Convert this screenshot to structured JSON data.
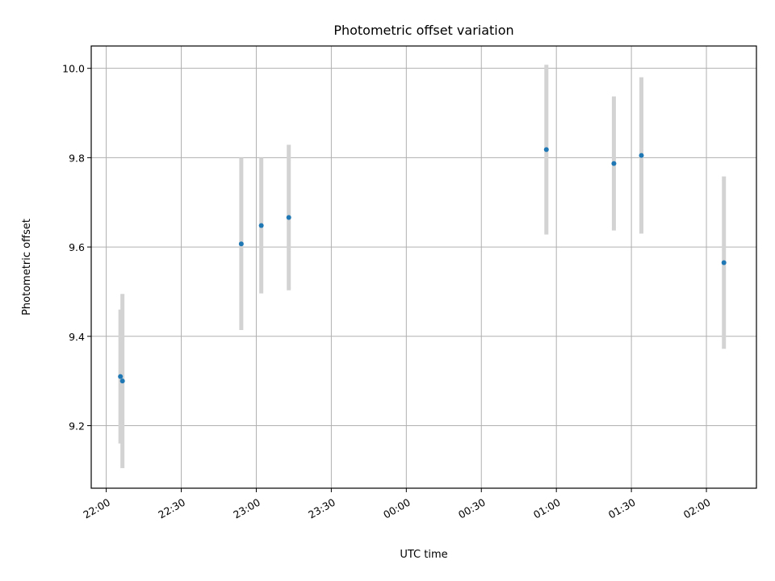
{
  "chart_data": {
    "type": "scatter",
    "title": "Photometric offset variation",
    "xlabel": "UTC time",
    "ylabel": "Photometric offset",
    "xlim": [
      "21:54",
      "02:20"
    ],
    "ylim": [
      9.06,
      10.05
    ],
    "x_ticks": [
      "22:00",
      "22:30",
      "23:00",
      "23:30",
      "00:00",
      "00:30",
      "01:00",
      "01:30",
      "02:00"
    ],
    "y_ticks": [
      9.2,
      9.4,
      9.6,
      9.8,
      10.0
    ],
    "y_tick_labels": [
      "9.2",
      "9.4",
      "9.6",
      "9.8",
      "10.0"
    ],
    "grid": true,
    "point_color": "#1f77b4",
    "errorbar_color": "#d3d3d3",
    "points": [
      {
        "x": "22:06",
        "y": 9.31,
        "yerr": 0.15
      },
      {
        "x": "22:06",
        "y": 9.3,
        "yerr": 0.195
      },
      {
        "x": "22:54",
        "y": 9.607,
        "yerr": 0.193
      },
      {
        "x": "23:02",
        "y": 9.648,
        "yerr": 0.152
      },
      {
        "x": "23:13",
        "y": 9.666,
        "yerr": 0.163
      },
      {
        "x": "00:56",
        "y": 9.818,
        "yerr": 0.19
      },
      {
        "x": "01:23",
        "y": 9.787,
        "yerr": 0.15
      },
      {
        "x": "01:34",
        "y": 9.805,
        "yerr": 0.175
      },
      {
        "x": "02:07",
        "y": 9.565,
        "yerr": 0.193
      }
    ]
  }
}
